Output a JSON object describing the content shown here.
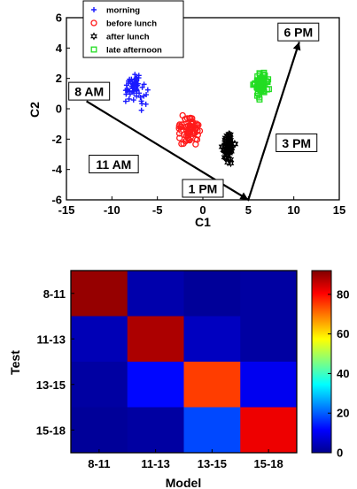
{
  "chart_data": [
    {
      "type": "scatter",
      "xlabel": "C1",
      "ylabel": "C2",
      "xlim": [
        -15,
        15
      ],
      "ylim": [
        -6,
        6
      ],
      "xticks": [
        -15,
        -10,
        -5,
        0,
        5,
        10,
        15
      ],
      "yticks": [
        -6,
        -4,
        -2,
        0,
        2,
        4,
        6
      ],
      "legend_position": "top-left",
      "series": [
        {
          "name": "morning",
          "marker": "plus",
          "color": "#1a1aff",
          "center": [
            -7.5,
            1.3
          ],
          "spread": [
            1.4,
            1.0
          ],
          "count": 60
        },
        {
          "name": "before lunch",
          "marker": "circle",
          "color": "#ff1a1a",
          "center": [
            -1.5,
            -1.4
          ],
          "spread": [
            1.5,
            1.1
          ],
          "count": 65
        },
        {
          "name": "after lunch",
          "marker": "hexagram",
          "color": "#000000",
          "center": [
            2.8,
            -2.6
          ],
          "spread": [
            0.8,
            1.0
          ],
          "count": 60
        },
        {
          "name": "late afternoon",
          "marker": "square",
          "color": "#22dd22",
          "center": [
            6.4,
            1.6
          ],
          "spread": [
            0.9,
            1.0
          ],
          "count": 70
        }
      ],
      "annotations": [
        {
          "label": "8 AM",
          "x": -12.5,
          "y": 1.1
        },
        {
          "label": "11 AM",
          "x": -9.8,
          "y": -3.7
        },
        {
          "label": "1 PM",
          "x": 0.0,
          "y": -5.3
        },
        {
          "label": "3 PM",
          "x": 10.3,
          "y": -2.3
        },
        {
          "label": "6 PM",
          "x": 10.5,
          "y": 5.0
        }
      ],
      "path": [
        [
          -12.8,
          0.5
        ],
        [
          5.0,
          -6.0
        ],
        [
          10.6,
          4.4
        ]
      ]
    },
    {
      "type": "heatmap",
      "xlabel": "Model",
      "ylabel": "Test",
      "x_categories": [
        "8-11",
        "11-13",
        "13-15",
        "15-18"
      ],
      "y_categories": [
        "8-11",
        "11-13",
        "13-15",
        "15-18"
      ],
      "values": [
        [
          90,
          3,
          1,
          2
        ],
        [
          4,
          88,
          5,
          2
        ],
        [
          2,
          12,
          75,
          10
        ],
        [
          1,
          2,
          18,
          82
        ]
      ],
      "colorbar_ticks": [
        0,
        20,
        40,
        60,
        80
      ],
      "clim": [
        0,
        92
      ]
    }
  ]
}
